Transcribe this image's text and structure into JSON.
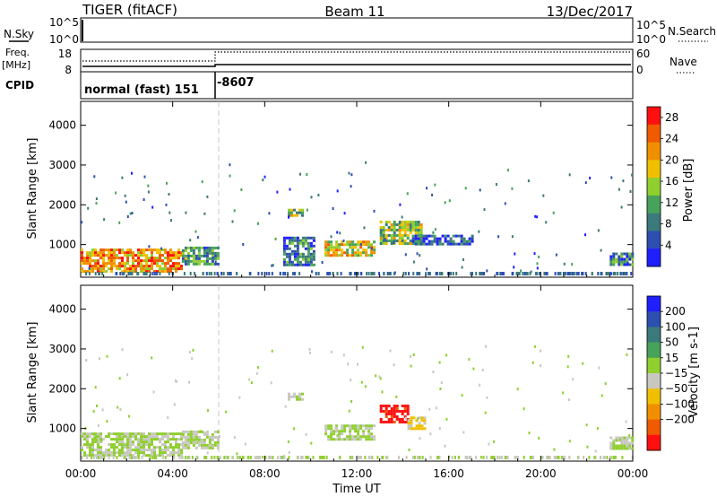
{
  "header": {
    "station": "TIGER (fitACF)",
    "beam": "Beam 11",
    "date": "13/Dec/2017"
  },
  "top_panels": {
    "nsky_label": "N.Sky",
    "nsearch_label": "N.Search",
    "y_hi": "10^5",
    "y_lo": "10^0",
    "freq_label_1": "Freq.",
    "freq_label_2": "[MHz]",
    "freq_hi": "18",
    "freq_lo": "8",
    "nave_label": "Nave",
    "nave_hi": "60",
    "nave_lo": "0",
    "cpid_label": "CPID",
    "cpid_1": "normal (fast) 151",
    "cpid_2": "-8607"
  },
  "colors": {
    "scale_power": [
      "#1f1fff",
      "#2c4fb0",
      "#3b7a7a",
      "#47a25a",
      "#8fcf2f",
      "#f0c000",
      "#f09000",
      "#f05a00",
      "#ff1010"
    ],
    "scale_velocity": [
      "#1f1fff",
      "#2c4fb0",
      "#3b7a7a",
      "#47a25a",
      "#8fcf2f",
      "#c8c8c0",
      "#f0c000",
      "#f09000",
      "#f05a00",
      "#ff1010"
    ]
  },
  "chart_data": [
    {
      "type": "heatmap",
      "title": "",
      "xlabel": "",
      "ylabel": "Slant Range [km]",
      "x_ticks": [
        "00:00",
        "04:00",
        "08:00",
        "12:00",
        "16:00",
        "20:00",
        "00:00"
      ],
      "x_range_hours": [
        0,
        24
      ],
      "y_ticks": [
        1000,
        2000,
        3000,
        4000
      ],
      "ylim": [
        180,
        4600
      ],
      "colorbar": {
        "label": "Power [dB]",
        "ticks": [
          4,
          8,
          12,
          16,
          20,
          24,
          28
        ],
        "range": [
          0,
          30
        ]
      },
      "patches": [
        {
          "t0": 0.0,
          "t1": 4.4,
          "r0": 350,
          "r1": 900,
          "value": 22
        },
        {
          "t0": 4.4,
          "t1": 6.0,
          "r0": 500,
          "r1": 950,
          "value": 10
        },
        {
          "t0": 8.8,
          "t1": 10.2,
          "r0": 500,
          "r1": 1200,
          "value": 8
        },
        {
          "t0": 9.0,
          "t1": 9.6,
          "r0": 1700,
          "r1": 1900,
          "value": 14
        },
        {
          "t0": 10.6,
          "t1": 12.8,
          "r0": 700,
          "r1": 1100,
          "value": 18
        },
        {
          "t0": 13.0,
          "t1": 14.8,
          "r0": 1000,
          "r1": 1600,
          "value": 14
        },
        {
          "t0": 14.4,
          "t1": 17.0,
          "r0": 1000,
          "r1": 1250,
          "value": 6
        },
        {
          "t0": 23.0,
          "t1": 24.0,
          "r0": 500,
          "r1": 800,
          "value": 8
        }
      ]
    },
    {
      "type": "heatmap",
      "title": "",
      "xlabel": "Time UT",
      "ylabel": "Slant Range [km]",
      "x_ticks": [
        "00:00",
        "04:00",
        "08:00",
        "12:00",
        "16:00",
        "20:00",
        "00:00"
      ],
      "x_range_hours": [
        0,
        24
      ],
      "y_ticks": [
        1000,
        2000,
        3000,
        4000
      ],
      "ylim": [
        180,
        4600
      ],
      "colorbar": {
        "label": "Velocity [m s-1]",
        "ticks": [
          200,
          100,
          50,
          15,
          -15,
          -50,
          -100,
          -200
        ],
        "range": [
          -250,
          250
        ]
      },
      "patches": [
        {
          "t0": 0.0,
          "t1": 4.4,
          "r0": 350,
          "r1": 900,
          "value": 0
        },
        {
          "t0": 4.4,
          "t1": 6.0,
          "r0": 500,
          "r1": 950,
          "value": 0
        },
        {
          "t0": 9.0,
          "t1": 9.6,
          "r0": 1700,
          "r1": 1900,
          "value": 0
        },
        {
          "t0": 10.6,
          "t1": 12.8,
          "r0": 700,
          "r1": 1100,
          "value": 0
        },
        {
          "t0": 13.0,
          "t1": 14.2,
          "r0": 1150,
          "r1": 1600,
          "value": -220
        },
        {
          "t0": 14.2,
          "t1": 15.0,
          "r0": 1000,
          "r1": 1300,
          "value": -60
        },
        {
          "t0": 23.0,
          "t1": 24.0,
          "r0": 500,
          "r1": 800,
          "value": 0
        }
      ]
    }
  ]
}
